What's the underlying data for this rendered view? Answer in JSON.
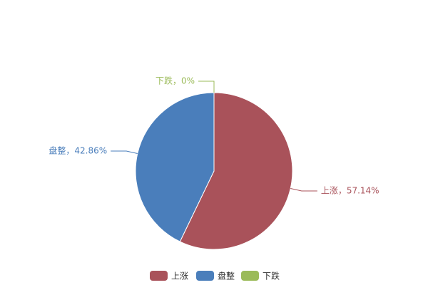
{
  "chart_data": {
    "type": "pie",
    "categories": [
      "上涨",
      "盘整",
      "下跌"
    ],
    "values": [
      57.14,
      42.86,
      0
    ],
    "value_labels": [
      "上涨，57.14%",
      "盘整，42.86%",
      "下跌，0%"
    ],
    "colors": [
      "#a9525a",
      "#4a7ebb",
      "#9bbb59"
    ]
  }
}
